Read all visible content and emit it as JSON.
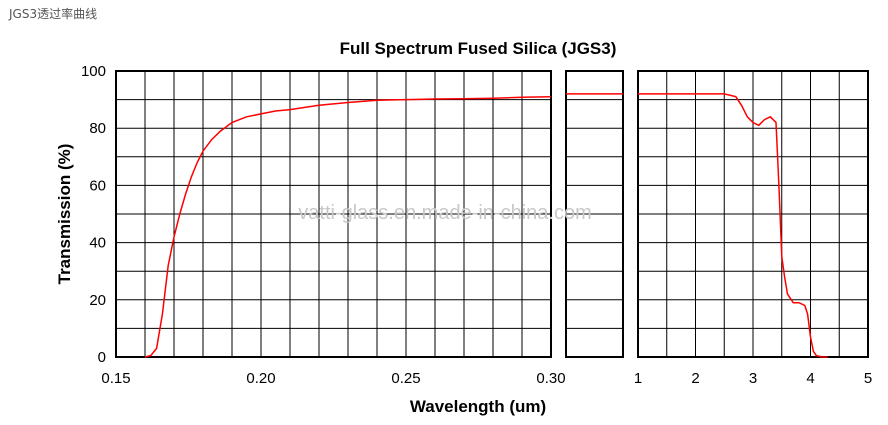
{
  "caption": "JGS3透过率曲线",
  "watermark": "vatti-glass.en.made-in-china.com",
  "chart_data": {
    "type": "line",
    "title": "Full Spectrum Fused Silica (JGS3)",
    "xlabel": "Wavelength (um)",
    "ylabel": "Transmission (%)",
    "ylim": [
      0,
      100
    ],
    "yticks": [
      "0",
      "20",
      "40",
      "60",
      "80",
      "100"
    ],
    "grid": true,
    "line_color": "#ff0000",
    "panels": [
      {
        "name": "uv",
        "xlim": [
          0.15,
          0.3
        ],
        "xticks": [
          {
            "v": 0.15,
            "label": "0.15"
          },
          {
            "v": 0.2,
            "label": "0.20"
          },
          {
            "v": 0.25,
            "label": "0.25"
          },
          {
            "v": 0.3,
            "label": "0.30"
          }
        ],
        "series": [
          {
            "x": [
              0.16,
              0.162,
              0.164,
              0.166,
              0.168,
              0.17,
              0.172,
              0.174,
              0.176,
              0.178,
              0.18,
              0.183,
              0.186,
              0.19,
              0.195,
              0.2,
              0.205,
              0.21,
              0.22,
              0.23,
              0.24,
              0.25,
              0.26,
              0.27,
              0.28,
              0.29,
              0.3
            ],
            "y": [
              0,
              0.5,
              3,
              15,
              32,
              42,
              50,
              57,
              63,
              68,
              72,
              76,
              79,
              82,
              84,
              85,
              86,
              86.5,
              88,
              89,
              89.8,
              90,
              90.2,
              90.3,
              90.5,
              90.8,
              91
            ]
          }
        ]
      },
      {
        "name": "vis",
        "xlim": [
          0.3,
          1.0
        ],
        "xticks": [],
        "series": [
          {
            "x": [
              0.3,
              1.0
            ],
            "y": [
              92,
              92
            ]
          }
        ]
      },
      {
        "name": "ir",
        "xlim": [
          1,
          5
        ],
        "xticks": [
          {
            "v": 1,
            "label": "1"
          },
          {
            "v": 2,
            "label": "2"
          },
          {
            "v": 3,
            "label": "3"
          },
          {
            "v": 4,
            "label": "4"
          },
          {
            "v": 5,
            "label": "5"
          }
        ],
        "series": [
          {
            "x": [
              1.0,
              2.5,
              2.7,
              2.8,
              2.9,
              3.0,
              3.1,
              3.2,
              3.3,
              3.4,
              3.45,
              3.5,
              3.55,
              3.6,
              3.7,
              3.8,
              3.9,
              3.95,
              4.0,
              4.05,
              4.1,
              4.2,
              4.3
            ],
            "y": [
              92,
              92,
              91,
              88,
              84,
              82,
              81,
              83,
              84,
              82,
              60,
              35,
              28,
              22,
              19,
              19,
              18,
              15,
              7,
              2,
              0.5,
              0,
              0
            ]
          }
        ]
      }
    ]
  }
}
